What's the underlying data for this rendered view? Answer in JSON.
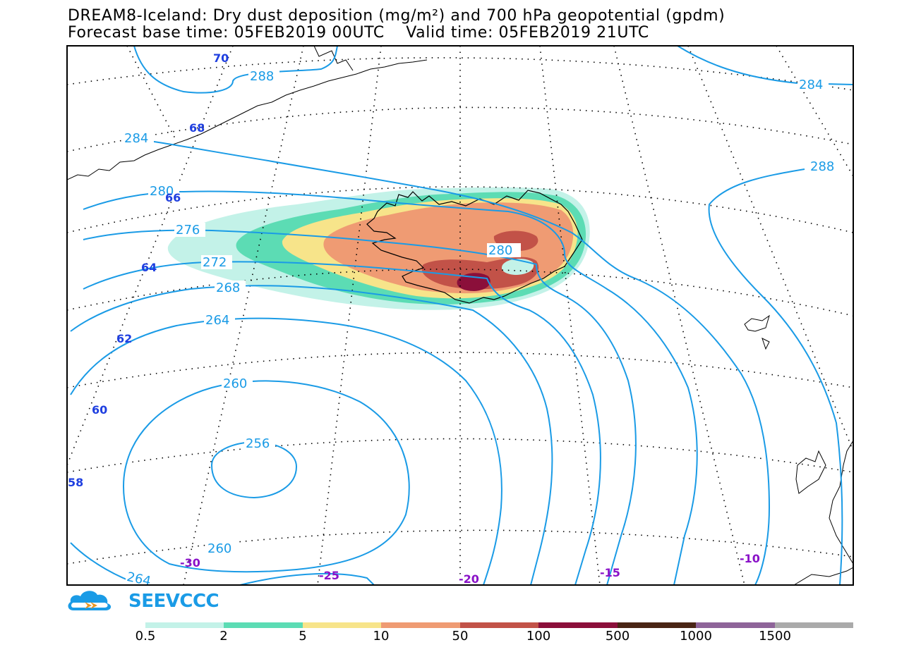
{
  "title": {
    "line1": "DREAM8-Iceland: Dry dust deposition (mg/m²) and 700 hPa geopotential (gpdm)",
    "line2": "Forecast base time: 05FEB2019 00UTC    Valid time: 05FEB2019 21UTC"
  },
  "map": {
    "geopotential_labels": [
      "288",
      "284",
      "280",
      "276",
      "272",
      "268",
      "264",
      "260",
      "256",
      "260",
      "264",
      "284",
      "288",
      "280"
    ],
    "latitude_labels": [
      "70",
      "68",
      "66",
      "64",
      "62",
      "60",
      "58"
    ],
    "longitude_labels": [
      "-30",
      "-25",
      "-20",
      "-15",
      "-10"
    ],
    "colors": {
      "contour": "#1a9be6",
      "latitude_label": "#1f3fe0",
      "longitude_label": "#8a12c8",
      "coast": "#000000"
    }
  },
  "colorbar": {
    "labels": [
      "0.5",
      "2",
      "5",
      "10",
      "50",
      "100",
      "500",
      "1000",
      "1500"
    ],
    "colors": [
      "#c3f2e8",
      "#5cdcb4",
      "#f7e48a",
      "#ef9b73",
      "#c25248",
      "#8b0f3a",
      "#4a2515",
      "#8e6499",
      "#aaaaaa"
    ]
  },
  "logo": {
    "text": "SEEVCCC"
  }
}
